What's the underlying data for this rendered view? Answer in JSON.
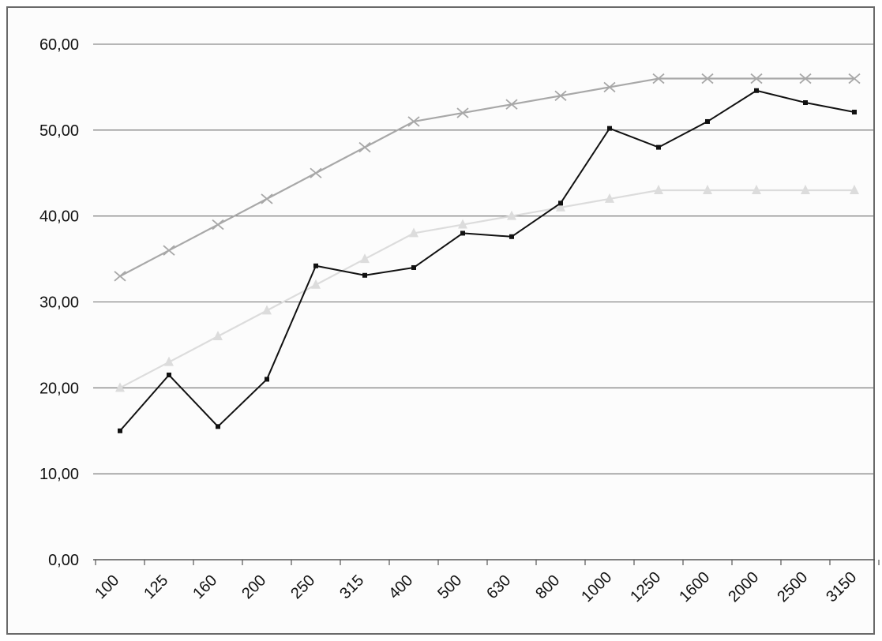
{
  "chart_data": {
    "type": "line",
    "title": "",
    "xlabel": "",
    "ylabel": "",
    "ylim": [
      0,
      60
    ],
    "y_ticks": [
      "0,00",
      "10,00",
      "20,00",
      "30,00",
      "40,00",
      "50,00",
      "60,00"
    ],
    "categories": [
      "100",
      "125",
      "160",
      "200",
      "250",
      "315",
      "400",
      "500",
      "630",
      "800",
      "1000",
      "1250",
      "1600",
      "2000",
      "2500",
      "3150"
    ],
    "grid": "horizontal",
    "legend": "none",
    "series": [
      {
        "marker": "x",
        "color": "#a8a8a8",
        "values": [
          33.0,
          36.0,
          39.0,
          42.0,
          45.0,
          48.0,
          51.0,
          52.0,
          53.0,
          54.0,
          55.0,
          56.0,
          56.0,
          56.0,
          56.0,
          56.0
        ]
      },
      {
        "marker": "triangle",
        "color": "#dcdcdc",
        "values": [
          20.0,
          23.0,
          26.0,
          29.0,
          32.0,
          35.0,
          38.0,
          39.0,
          40.0,
          41.0,
          42.0,
          43.0,
          43.0,
          43.0,
          43.0,
          43.0
        ]
      },
      {
        "marker": "square",
        "color": "#111111",
        "values": [
          15.0,
          21.5,
          15.5,
          21.0,
          34.2,
          33.1,
          34.0,
          38.0,
          37.6,
          41.5,
          50.2,
          48.0,
          51.0,
          54.6,
          53.2,
          52.1
        ]
      }
    ]
  }
}
